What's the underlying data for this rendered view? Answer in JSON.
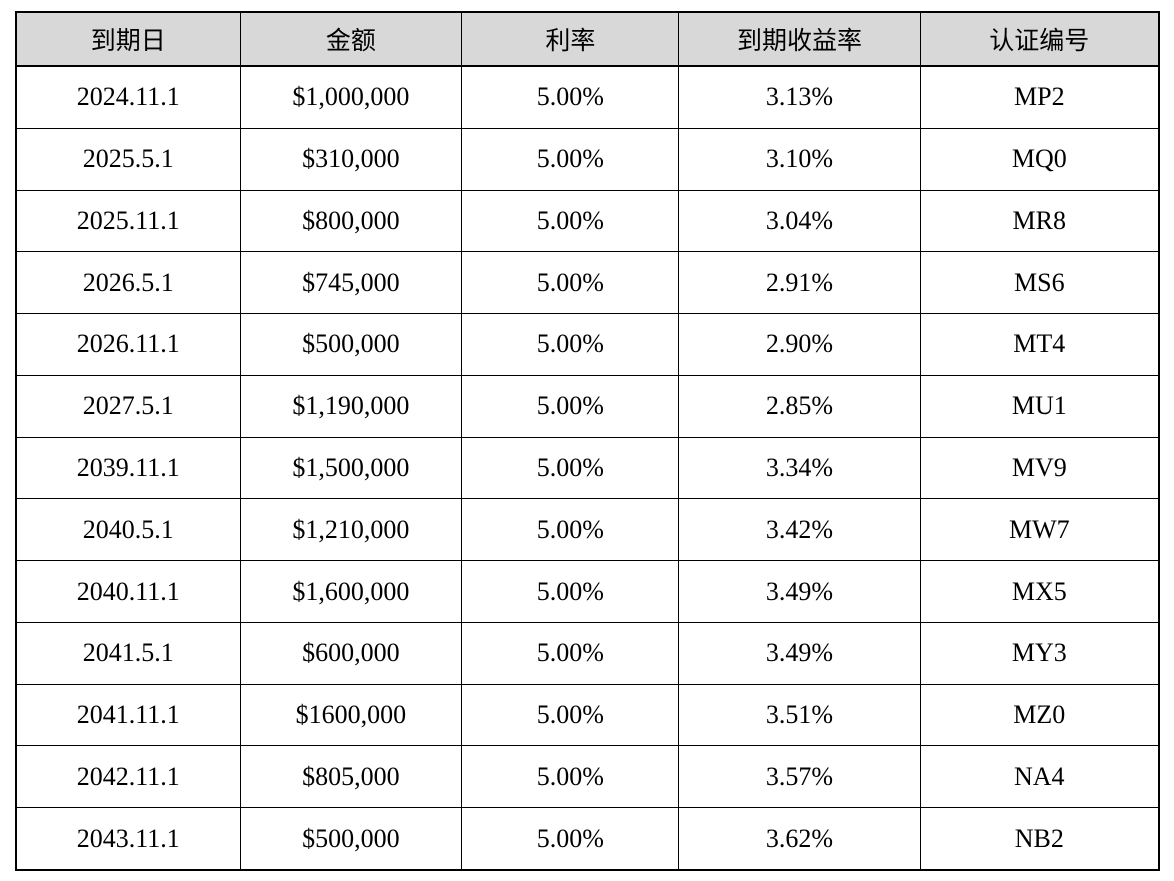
{
  "colors": {
    "header_bg": "#d8d8d8",
    "border": "#000000",
    "background": "#ffffff",
    "text": "#000000"
  },
  "table": {
    "headers": [
      "到期日",
      "金额",
      "利率",
      "到期收益率",
      "认证编号"
    ],
    "column_keys": [
      "maturity-date",
      "amount",
      "interest-rate",
      "yield-to-maturity",
      "certificate-number"
    ],
    "rows": [
      [
        "2024.11.1",
        "$1,000,000",
        "5.00%",
        "3.13%",
        "MP2"
      ],
      [
        "2025.5.1",
        "$310,000",
        "5.00%",
        "3.10%",
        "MQ0"
      ],
      [
        "2025.11.1",
        "$800,000",
        "5.00%",
        "3.04%",
        "MR8"
      ],
      [
        "2026.5.1",
        "$745,000",
        "5.00%",
        "2.91%",
        "MS6"
      ],
      [
        "2026.11.1",
        "$500,000",
        "5.00%",
        "2.90%",
        "MT4"
      ],
      [
        "2027.5.1",
        "$1,190,000",
        "5.00%",
        "2.85%",
        "MU1"
      ],
      [
        "2039.11.1",
        "$1,500,000",
        "5.00%",
        "3.34%",
        "MV9"
      ],
      [
        "2040.5.1",
        "$1,210,000",
        "5.00%",
        "3.42%",
        "MW7"
      ],
      [
        "2040.11.1",
        "$1,600,000",
        "5.00%",
        "3.49%",
        "MX5"
      ],
      [
        "2041.5.1",
        "$600,000",
        "5.00%",
        "3.49%",
        "MY3"
      ],
      [
        "2041.11.1",
        "$1600,000",
        "5.00%",
        "3.51%",
        "MZ0"
      ],
      [
        "2042.11.1",
        "$805,000",
        "5.00%",
        "3.57%",
        "NA4"
      ],
      [
        "2043.11.1",
        "$500,000",
        "5.00%",
        "3.62%",
        "NB2"
      ]
    ]
  }
}
